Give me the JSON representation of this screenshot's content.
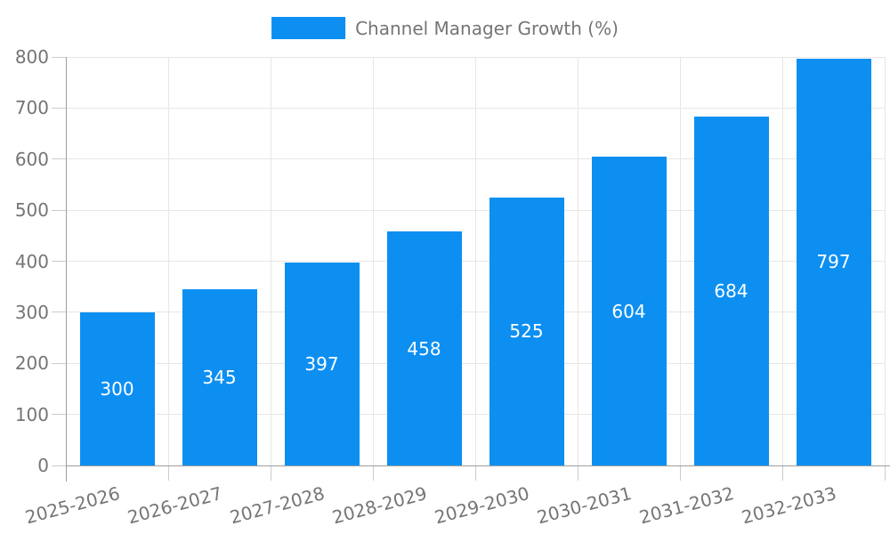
{
  "chart_data": {
    "type": "bar",
    "title": "Channel Manager Growth (%)",
    "categories": [
      "2025-2026",
      "2026-2027",
      "2027-2028",
      "2028-2029",
      "2029-2030",
      "2030-2031",
      "2031-2032",
      "2032-2033"
    ],
    "values": [
      300,
      345,
      397,
      458,
      525,
      604,
      684,
      797
    ],
    "series": [
      {
        "name": "Channel Manager Growth (%)",
        "values": [
          300,
          345,
          397,
          458,
          525,
          604,
          684,
          797
        ]
      }
    ],
    "xlabel": "",
    "ylabel": "",
    "ylim": [
      0,
      800
    ],
    "ytick_interval": 100,
    "yticks": [
      "0",
      "100",
      "200",
      "300",
      "400",
      "500",
      "600",
      "700",
      "800"
    ],
    "grid": true,
    "legend_position": "top-center",
    "bar_value_labels_position": "center-inside",
    "x_label_rotation_deg": -15,
    "colors": {
      "bar": "#0d8ff2",
      "bar_value_label": "#ffffff",
      "axis_text": "#757575",
      "axis_line": "#9e9e9e",
      "grid_line": "#e6e6e6",
      "tick_line": "#cccccc",
      "background": "#ffffff"
    }
  }
}
